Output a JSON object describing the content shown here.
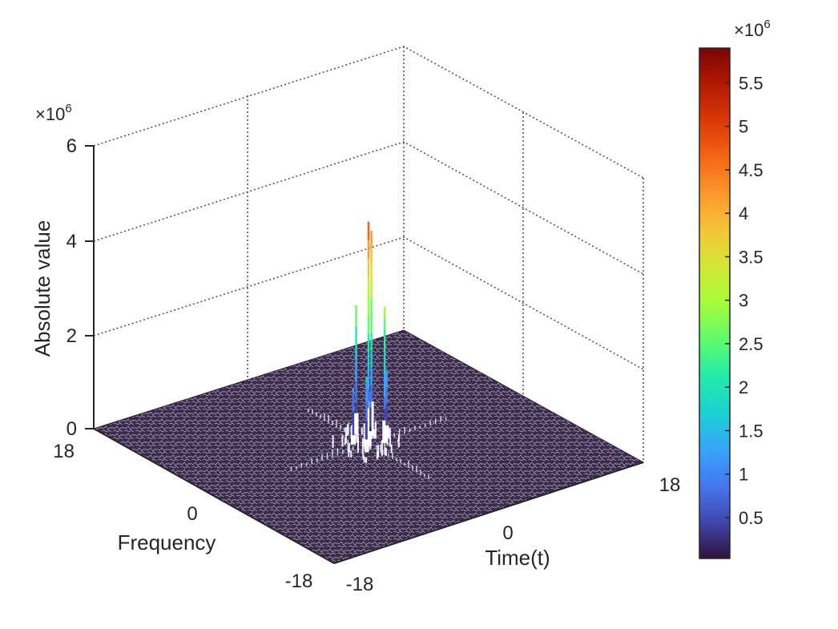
{
  "chart_data": {
    "type": "surface3d",
    "xlabel": "Time(t)",
    "ylabel": "Frequency",
    "zlabel": "Absolute value",
    "x_ticks": [
      -18,
      0,
      18
    ],
    "y_ticks": [
      -18,
      0,
      18
    ],
    "z_ticks": [
      0,
      2,
      4,
      6
    ],
    "zlim": [
      0,
      6
    ],
    "z_exponent": "×10^6",
    "x_range": [
      -18,
      18
    ],
    "y_range": [
      -18,
      18
    ],
    "grid": true,
    "colormap": "turbo",
    "colorbar": {
      "ticks": [
        "0.5",
        "1",
        "1.5",
        "2",
        "2.5",
        "3",
        "3.5",
        "4",
        "4.5",
        "5",
        "5.5"
      ],
      "range": [
        0.03,
        5.9
      ],
      "exponent": "×10^6",
      "placement": "right"
    },
    "peaks": [
      {
        "x": 0,
        "y": 0,
        "z": 4.75
      },
      {
        "x": 1.5,
        "y": 1.5,
        "z": 4.35
      },
      {
        "x": 1.5,
        "y": -0.5,
        "z": 2.9
      },
      {
        "x": 0.5,
        "y": 2.5,
        "z": 2.75
      },
      {
        "x": -1.0,
        "y": -1.0,
        "z": 1.6
      },
      {
        "x": 2.5,
        "y": 0.5,
        "z": 1.4
      },
      {
        "x": -1.0,
        "y": 1.0,
        "z": 1.2
      },
      {
        "x": 1.0,
        "y": 1.0,
        "z": 1.0
      }
    ],
    "background_level": 0.05
  }
}
